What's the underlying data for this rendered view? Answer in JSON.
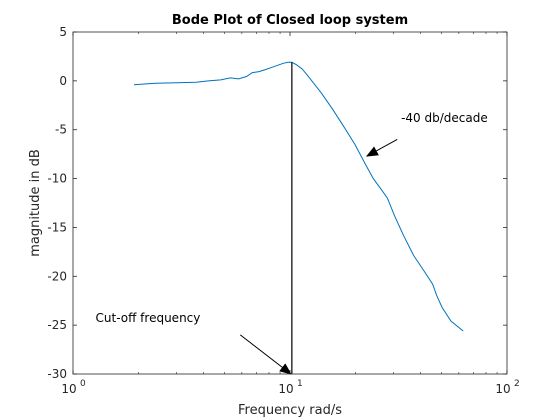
{
  "chart_data": {
    "type": "line",
    "title": "Bode Plot of Closed loop system",
    "xlabel": "Frequency rad/s",
    "ylabel": "magnitude in dB",
    "xscale": "log",
    "xlim": [
      1,
      100
    ],
    "ylim": [
      -30,
      5
    ],
    "grid": false,
    "xticks": [
      {
        "value": 1,
        "base": "10",
        "exp": "0"
      },
      {
        "value": 10,
        "base": "10",
        "exp": "1"
      },
      {
        "value": 100,
        "base": "10",
        "exp": "2"
      }
    ],
    "yticks": [
      {
        "value": 5,
        "label": "5"
      },
      {
        "value": 0,
        "label": "0"
      },
      {
        "value": -5,
        "label": "-5"
      },
      {
        "value": -10,
        "label": "-10"
      },
      {
        "value": -15,
        "label": "-15"
      },
      {
        "value": -20,
        "label": "-20"
      },
      {
        "value": -25,
        "label": "-25"
      },
      {
        "value": -30,
        "label": "-30"
      }
    ],
    "series": [
      {
        "color": "#0072bd",
        "x": [
          1.91,
          2.4,
          3.0,
          3.7,
          4.2,
          4.8,
          5.3,
          5.8,
          6.3,
          6.7,
          7.2,
          7.7,
          8.3,
          8.8,
          9.3,
          9.8,
          10.2,
          10.7,
          11.4,
          12.3,
          13.9,
          15.6,
          17.6,
          19.9,
          22.2,
          24.2,
          26.1,
          28.1,
          30.3,
          33.3,
          37.2,
          41.0,
          45.4,
          47.5,
          50.3,
          55.2,
          62.8
        ],
        "y": [
          -0.4,
          -0.25,
          -0.2,
          -0.15,
          0.0,
          0.1,
          0.3,
          0.2,
          0.45,
          0.85,
          0.95,
          1.15,
          1.4,
          1.6,
          1.8,
          1.9,
          1.9,
          1.65,
          1.2,
          0.3,
          -1.2,
          -2.8,
          -4.6,
          -6.5,
          -8.5,
          -10.0,
          -11.0,
          -12.0,
          -13.8,
          -15.8,
          -17.9,
          -19.3,
          -20.8,
          -22.0,
          -23.2,
          -24.6,
          -25.6
        ]
      }
    ],
    "reference_line": {
      "x": 10.2,
      "from_y": 1.9,
      "to_y": -30
    },
    "annotations": [
      {
        "text": "-40 db/decade",
        "text_x": 32.5,
        "text_y": -4.2,
        "arrow_from_x": 31.2,
        "arrow_from_y": -6.0,
        "arrow_to_x": 22.6,
        "arrow_to_y": -7.7
      },
      {
        "text": "Cut-off frequency",
        "text_x": 1.27,
        "text_y": -24.7,
        "arrow_from_x": 5.9,
        "arrow_from_y": -26.0,
        "arrow_to_x": 10.1,
        "arrow_to_y": -30.0
      }
    ]
  }
}
